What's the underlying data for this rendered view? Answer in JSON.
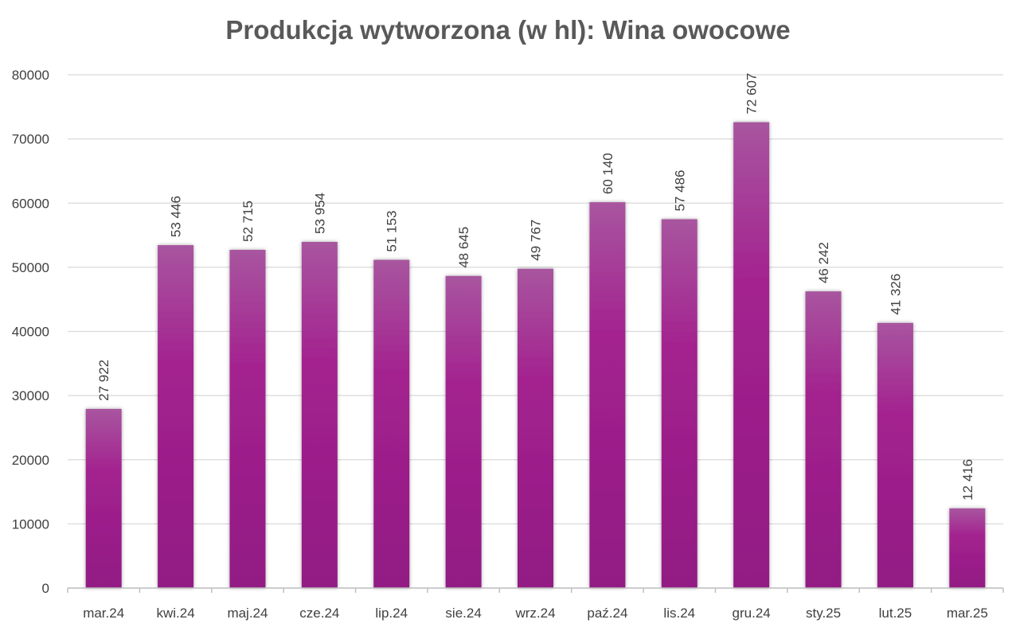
{
  "chart_data": {
    "type": "bar",
    "title": "Produkcja wytworzona (w hl): Wina owocowe",
    "xlabel": "",
    "ylabel": "",
    "categories": [
      "mar.24",
      "kwi.24",
      "maj.24",
      "cze.24",
      "lip.24",
      "sie.24",
      "wrz.24",
      "paź.24",
      "lis.24",
      "gru.24",
      "sty.25",
      "lut.25",
      "mar.25"
    ],
    "values": [
      27922,
      53446,
      52715,
      53954,
      51153,
      48645,
      49767,
      60140,
      57486,
      72607,
      46242,
      41326,
      12416
    ],
    "data_labels": [
      "27 922",
      "53 446",
      "52 715",
      "53 954",
      "51 153",
      "48 645",
      "49 767",
      "60 140",
      "57 486",
      "72 607",
      "46 242",
      "41 326",
      "12 416"
    ],
    "ylim": [
      0,
      80000
    ],
    "yticks": [
      0,
      10000,
      20000,
      30000,
      40000,
      50000,
      60000,
      70000,
      80000
    ],
    "grid": true,
    "legend": "none",
    "colors": {
      "bar_top": "#a8559f",
      "bar_mid": "#a3228f",
      "bar_bottom": "#921a84",
      "grid": "#d9d9d9",
      "text": "#404040"
    }
  }
}
